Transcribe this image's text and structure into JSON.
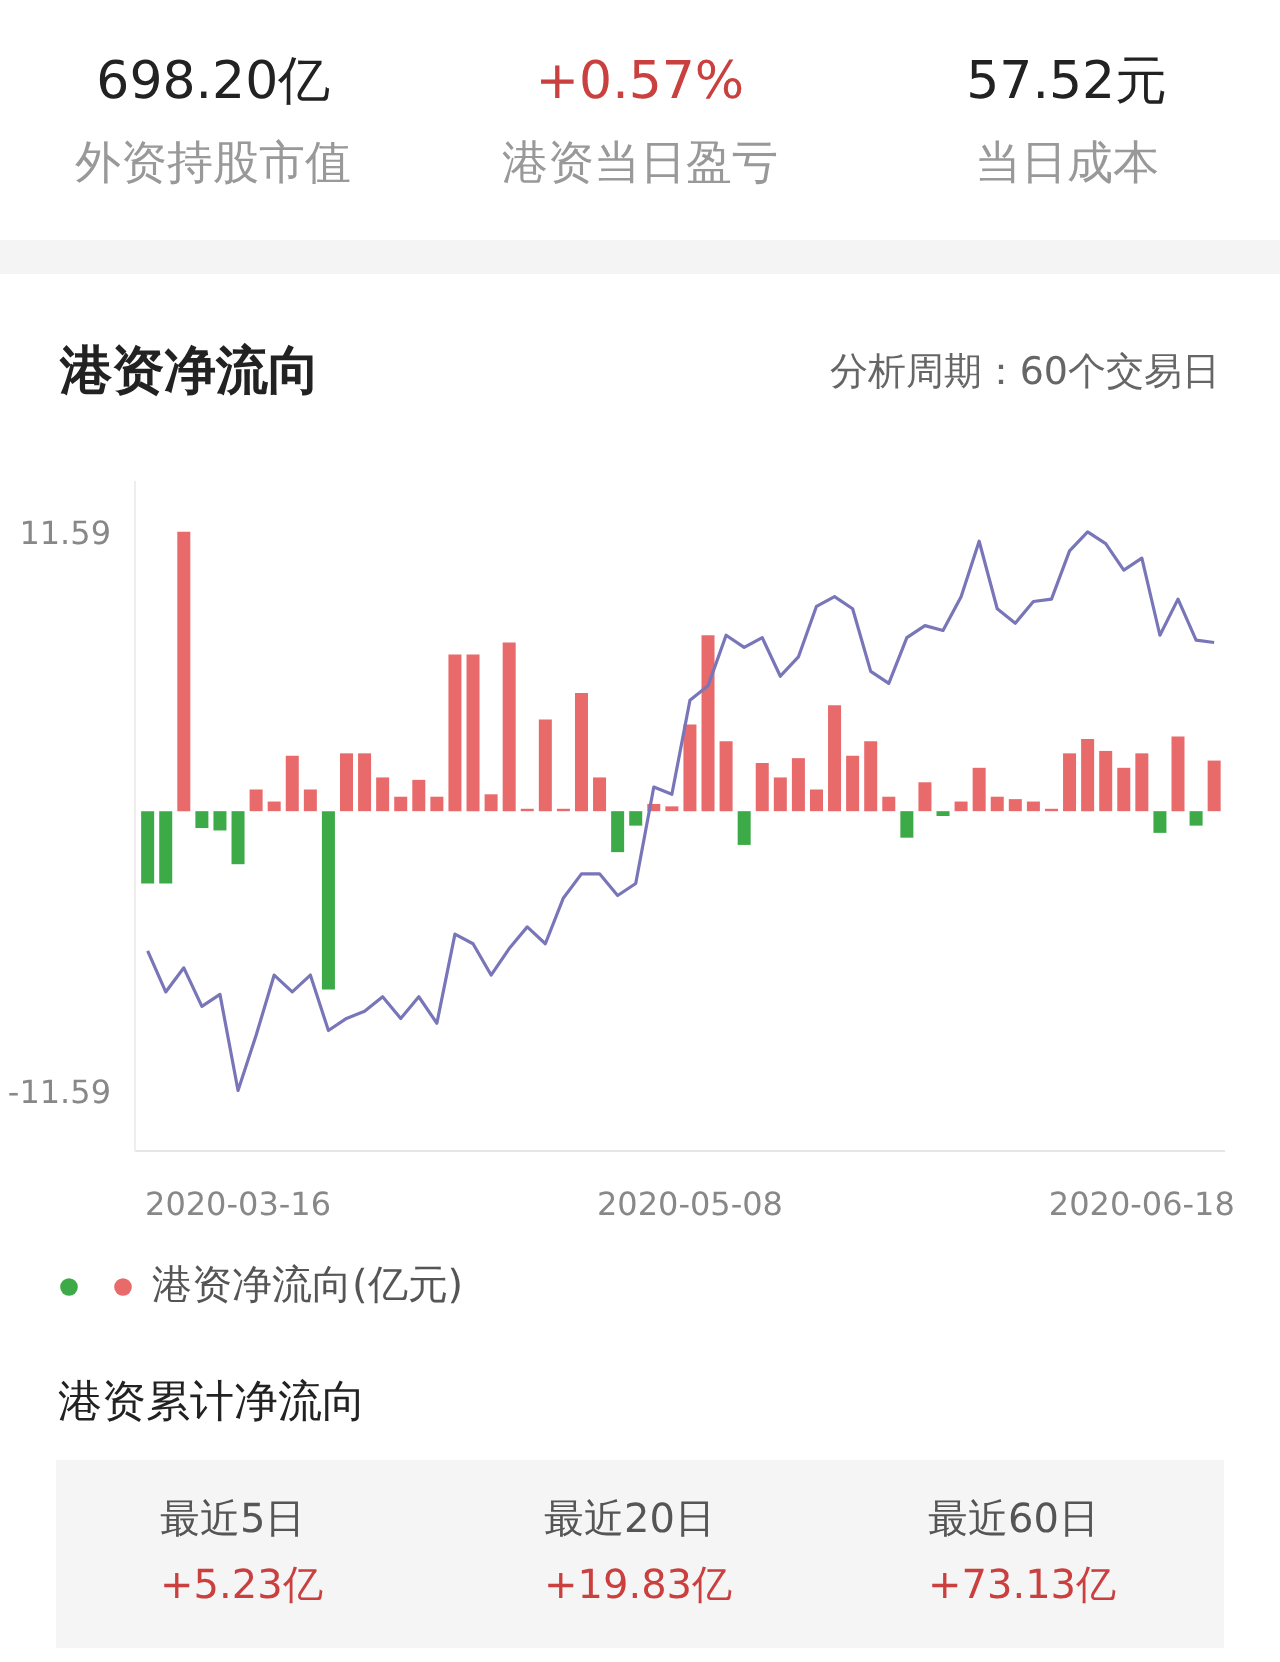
{
  "chart_data": [
    {
      "type": "other",
      "annotations": [
        "698.20亿",
        "外资持股市值",
        "+0.57%",
        "港资当日盈亏",
        "57.52元",
        "当日成本"
      ]
    },
    {
      "type": "bar",
      "title": "港资净流向",
      "subtitle": "分析周期：60个交易日",
      "categories": [
        null,
        null,
        null,
        null,
        null,
        "2020-03-16",
        null,
        null,
        null,
        null,
        null,
        null,
        null,
        null,
        null,
        null,
        null,
        null,
        null,
        null,
        null,
        null,
        null,
        null,
        null,
        null,
        null,
        null,
        null,
        null,
        "2020-05-08",
        null,
        null,
        null,
        null,
        null,
        null,
        null,
        null,
        null,
        null,
        null,
        null,
        null,
        null,
        null,
        null,
        null,
        null,
        null,
        null,
        null,
        null,
        null,
        null,
        "2020-06-18",
        null,
        null,
        null,
        null
      ],
      "ylim": [
        -14.1,
        13.7
      ],
      "yticks": [
        -11.59,
        11.59
      ],
      "legend": "bottom left",
      "series": [
        {
          "name": "港资净流向(亿元)",
          "type": "bar",
          "colors": [
            "#3daa48",
            "#3daa48",
            "#e96a6b",
            "#3daa48",
            "#3daa48",
            "#3daa48",
            "#e96a6b",
            "#e96a6b",
            "#e96a6b",
            "#e96a6b",
            "#3daa48",
            "#e96a6b",
            "#e96a6b",
            "#e96a6b",
            "#e96a6b",
            "#e96a6b",
            "#e96a6b",
            "#e96a6b",
            "#e96a6b",
            "#e96a6b",
            "#e96a6b",
            "#e96a6b",
            "#e96a6b",
            "#e96a6b",
            "#e96a6b",
            "#e96a6b",
            "#3daa48",
            "#3daa48",
            "#e96a6b",
            "#e96a6b",
            "#e96a6b",
            "#e96a6b",
            "#e96a6b",
            "#3daa48",
            "#e96a6b",
            "#e96a6b",
            "#e96a6b",
            "#e96a6b",
            "#e96a6b",
            "#e96a6b",
            "#e96a6b",
            "#e96a6b",
            "#3daa48",
            "#e96a6b",
            "#3daa48",
            "#e96a6b",
            "#e96a6b",
            "#e96a6b",
            "#e96a6b",
            "#e96a6b",
            "#e96a6b",
            "#e96a6b",
            "#e96a6b",
            "#e96a6b",
            "#e96a6b",
            "#e96a6b",
            "#3daa48",
            "#e96a6b",
            "#3daa48",
            "#e96a6b"
          ],
          "values": [
            -3.0,
            -3.0,
            11.59,
            -0.7,
            -0.8,
            -2.2,
            0.9,
            0.4,
            2.3,
            0.9,
            -7.4,
            2.4,
            2.4,
            1.4,
            0.6,
            1.3,
            0.6,
            6.5,
            6.5,
            0.7,
            7.0,
            0.1,
            3.8,
            0.1,
            4.9,
            1.4,
            -1.7,
            -0.6,
            0.3,
            0.2,
            3.6,
            7.3,
            2.9,
            -1.4,
            2.0,
            1.4,
            2.2,
            0.9,
            4.4,
            2.3,
            2.9,
            0.6,
            -1.1,
            1.2,
            -0.2,
            0.4,
            1.8,
            0.6,
            0.5,
            0.4,
            0.1,
            2.4,
            3.0,
            2.5,
            1.8,
            2.4,
            -0.9,
            3.1,
            -0.6,
            2.1
          ]
        },
        {
          "type": "line",
          "color": "#7876b8",
          "values": [
            -5.8,
            -7.5,
            -6.5,
            -8.1,
            -7.6,
            -11.59,
            -9.3,
            -6.8,
            -7.5,
            -6.8,
            -9.1,
            -8.6,
            -8.3,
            -7.7,
            -8.6,
            -7.7,
            -8.8,
            -5.1,
            -5.5,
            -6.8,
            -5.7,
            -4.8,
            -5.5,
            -3.6,
            -2.6,
            -2.6,
            -3.5,
            -3.0,
            1.0,
            0.7,
            4.6,
            5.2,
            7.3,
            6.8,
            7.2,
            5.6,
            6.4,
            8.5,
            8.9,
            8.4,
            5.8,
            5.3,
            7.2,
            7.7,
            7.5,
            8.9,
            11.2,
            8.4,
            7.8,
            8.7,
            8.8,
            10.8,
            11.59,
            11.1,
            10.0,
            10.5,
            7.3,
            8.8,
            7.1,
            7.0
          ]
        }
      ]
    },
    {
      "type": "other",
      "title": "港资累计净流向",
      "annotations": [
        "最近5日",
        "+5.23亿",
        "最近20日",
        "+19.83亿",
        "最近60日",
        "+73.13亿"
      ]
    }
  ]
}
